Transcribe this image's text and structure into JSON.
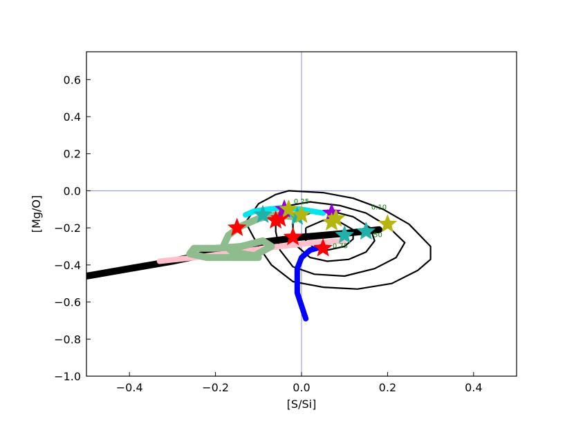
{
  "chart_data": {
    "type": "line",
    "xlabel": "[S/Si]",
    "ylabel": "[Mg/O]",
    "xlim": [
      -0.5,
      0.5
    ],
    "ylim": [
      -1.0,
      0.75
    ],
    "xticks": [
      -0.4,
      -0.2,
      0.0,
      0.2,
      0.4
    ],
    "yticks": [
      -1.0,
      -0.8,
      -0.6,
      -0.4,
      -0.2,
      0.0,
      0.2,
      0.4,
      0.6
    ],
    "xtick_labels": [
      "−0.4",
      "−0.2",
      "0.0",
      "0.2",
      "0.4"
    ],
    "ytick_labels": [
      "−1.0",
      "−0.8",
      "−0.6",
      "−0.4",
      "−0.2",
      "0.0",
      "0.2",
      "0.4",
      "0.6"
    ],
    "reference_lines": {
      "x": 0.0,
      "y": 0.0,
      "color": "#8888ee"
    },
    "contours": [
      {
        "level": "0.10",
        "color": "#000000",
        "points": [
          [
            -0.13,
            -0.17
          ],
          [
            -0.1,
            -0.07
          ],
          [
            -0.06,
            -0.02
          ],
          [
            -0.03,
            0.0
          ],
          [
            0.05,
            -0.01
          ],
          [
            0.12,
            -0.04
          ],
          [
            0.19,
            -0.1
          ],
          [
            0.25,
            -0.18
          ],
          [
            0.3,
            -0.3
          ],
          [
            0.3,
            -0.37
          ],
          [
            0.27,
            -0.43
          ],
          [
            0.21,
            -0.5
          ],
          [
            0.13,
            -0.53
          ],
          [
            0.05,
            -0.52
          ],
          [
            -0.02,
            -0.49
          ],
          [
            -0.07,
            -0.4
          ],
          [
            -0.1,
            -0.3
          ],
          [
            -0.13,
            -0.17
          ]
        ]
      },
      {
        "level": "0.25",
        "color": "#000000",
        "points": [
          [
            -0.06,
            -0.13
          ],
          [
            -0.03,
            -0.08
          ],
          [
            0.02,
            -0.06
          ],
          [
            0.09,
            -0.08
          ],
          [
            0.15,
            -0.12
          ],
          [
            0.2,
            -0.19
          ],
          [
            0.24,
            -0.28
          ],
          [
            0.22,
            -0.36
          ],
          [
            0.17,
            -0.42
          ],
          [
            0.1,
            -0.46
          ],
          [
            0.03,
            -0.45
          ],
          [
            -0.02,
            -0.41
          ],
          [
            -0.05,
            -0.32
          ],
          [
            -0.06,
            -0.22
          ],
          [
            -0.06,
            -0.13
          ]
        ]
      },
      {
        "level": "0.50",
        "color": "#000000",
        "points": [
          [
            -0.02,
            -0.16
          ],
          [
            0.02,
            -0.12
          ],
          [
            0.07,
            -0.11
          ],
          [
            0.12,
            -0.14
          ],
          [
            0.16,
            -0.2
          ],
          [
            0.17,
            -0.27
          ],
          [
            0.15,
            -0.33
          ],
          [
            0.11,
            -0.37
          ],
          [
            0.06,
            -0.38
          ],
          [
            0.02,
            -0.36
          ],
          [
            -0.01,
            -0.3
          ],
          [
            -0.02,
            -0.22
          ],
          [
            -0.02,
            -0.16
          ]
        ]
      },
      {
        "level": "0.75",
        "color": "#000000",
        "points": [
          [
            0.01,
            -0.2
          ],
          [
            0.05,
            -0.16
          ],
          [
            0.09,
            -0.17
          ],
          [
            0.12,
            -0.21
          ],
          [
            0.12,
            -0.26
          ],
          [
            0.1,
            -0.3
          ],
          [
            0.06,
            -0.32
          ],
          [
            0.03,
            -0.31
          ],
          [
            0.01,
            -0.27
          ],
          [
            0.01,
            -0.2
          ]
        ]
      }
    ],
    "contour_labels": [
      {
        "text": "0.25",
        "x": 0.0,
        "y": -0.07
      },
      {
        "text": "0.10",
        "x": 0.18,
        "y": -0.1
      },
      {
        "text": "0.50",
        "x": 0.17,
        "y": -0.25
      },
      {
        "text": "0.75",
        "x": 0.09,
        "y": -0.31
      }
    ],
    "series": [
      {
        "color": "#000000",
        "width": 10,
        "points": [
          [
            -0.5,
            -0.46
          ],
          [
            -0.4,
            -0.42
          ],
          [
            -0.3,
            -0.38
          ],
          [
            -0.2,
            -0.33
          ],
          [
            -0.1,
            -0.28
          ],
          [
            0.0,
            -0.25
          ],
          [
            0.1,
            -0.23
          ],
          [
            0.18,
            -0.21
          ]
        ]
      },
      {
        "color": "#ffc0cb",
        "width": 8,
        "points": [
          [
            -0.33,
            -0.38
          ],
          [
            -0.25,
            -0.36
          ],
          [
            -0.15,
            -0.33
          ],
          [
            -0.05,
            -0.3
          ],
          [
            0.03,
            -0.28
          ],
          [
            0.1,
            -0.27
          ]
        ]
      },
      {
        "color": "#0000ff",
        "width": 8,
        "points": [
          [
            0.01,
            -0.69
          ],
          [
            0.0,
            -0.62
          ],
          [
            -0.01,
            -0.55
          ],
          [
            -0.01,
            -0.48
          ],
          [
            -0.01,
            -0.42
          ],
          [
            0.0,
            -0.36
          ],
          [
            0.02,
            -0.32
          ],
          [
            0.05,
            -0.3
          ]
        ]
      },
      {
        "color": "#8fbc8f",
        "width": 10,
        "points": [
          [
            -0.02,
            -0.14
          ],
          [
            -0.06,
            -0.13
          ],
          [
            -0.1,
            -0.15
          ],
          [
            -0.14,
            -0.19
          ],
          [
            -0.17,
            -0.24
          ],
          [
            -0.18,
            -0.29
          ],
          [
            -0.16,
            -0.33
          ],
          [
            -0.11,
            -0.35
          ],
          [
            -0.07,
            -0.3
          ],
          [
            -0.09,
            -0.27
          ],
          [
            -0.14,
            -0.3
          ],
          [
            -0.2,
            -0.31
          ],
          [
            -0.25,
            -0.31
          ],
          [
            -0.26,
            -0.34
          ],
          [
            -0.22,
            -0.36
          ],
          [
            -0.15,
            -0.36
          ],
          [
            -0.1,
            -0.36
          ]
        ]
      },
      {
        "color": "#00e5ee",
        "width": 8,
        "points": [
          [
            -0.13,
            -0.13
          ],
          [
            -0.11,
            -0.11
          ],
          [
            -0.08,
            -0.1
          ],
          [
            -0.04,
            -0.09
          ],
          [
            0.0,
            -0.1
          ],
          [
            0.05,
            -0.12
          ]
        ]
      }
    ],
    "stars": [
      {
        "color": "#ff0000",
        "x": -0.15,
        "y": -0.2
      },
      {
        "color": "#ff0000",
        "x": -0.06,
        "y": -0.16
      },
      {
        "color": "#ff0000",
        "x": -0.05,
        "y": -0.15
      },
      {
        "color": "#ff0000",
        "x": -0.02,
        "y": -0.25
      },
      {
        "color": "#ff0000",
        "x": 0.05,
        "y": -0.31
      },
      {
        "color": "#9400d3",
        "x": -0.04,
        "y": -0.1
      },
      {
        "color": "#9400d3",
        "x": 0.07,
        "y": -0.12
      },
      {
        "color": "#20b2aa",
        "x": -0.09,
        "y": -0.13
      },
      {
        "color": "#20b2aa",
        "x": -0.01,
        "y": -0.14
      },
      {
        "color": "#20b2aa",
        "x": 0.1,
        "y": -0.24
      },
      {
        "color": "#20b2aa",
        "x": 0.15,
        "y": -0.22
      },
      {
        "color": "#b5b512",
        "x": -0.03,
        "y": -0.1
      },
      {
        "color": "#b5b512",
        "x": 0.0,
        "y": -0.13
      },
      {
        "color": "#b5b512",
        "x": 0.07,
        "y": -0.17
      },
      {
        "color": "#b5b512",
        "x": 0.08,
        "y": -0.15
      },
      {
        "color": "#b5b512",
        "x": 0.2,
        "y": -0.18
      }
    ]
  }
}
